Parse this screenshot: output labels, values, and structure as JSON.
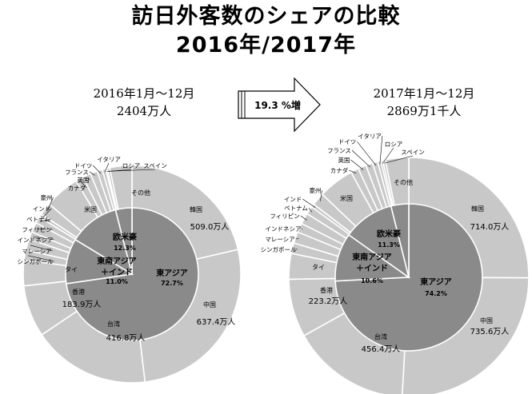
{
  "title_line1": "訪日外客数のシェアの比較",
  "title_line2": "2016年/2017年",
  "growth_label": "19.3 %増",
  "chart_data": [
    {
      "type": "pie",
      "period": "2016年1月～12月",
      "total": "2404万人",
      "outer": [
        {
          "name": "その他",
          "value": 0.5
        },
        {
          "name": "韓国",
          "value": 509.0,
          "value_label": "509.0万人",
          "color": "#c8c8c8"
        },
        {
          "name": "中国",
          "value": 637.4,
          "value_label": "637.4万人",
          "color": "#c8c8c8"
        },
        {
          "name": "台湾",
          "value": 416.8,
          "value_label": "416.8万人",
          "color": "#c8c8c8"
        },
        {
          "name": "香港",
          "value": 183.9,
          "value_label": "183.9万人",
          "color": "#c8c8c8"
        },
        {
          "name": "タイ",
          "value": 90.1
        },
        {
          "name": "シンガポール",
          "value": 36.2
        },
        {
          "name": "マレーシア",
          "value": 39.4
        },
        {
          "name": "インドネシア",
          "value": 27.1
        },
        {
          "name": "フィリピン",
          "value": 34.8
        },
        {
          "name": "ベトナム",
          "value": 23.4
        },
        {
          "name": "インド",
          "value": 12.3
        },
        {
          "name": "豪州",
          "value": 44.5
        },
        {
          "name": "米国",
          "value": 124.3
        },
        {
          "name": "カナダ",
          "value": 27.3
        },
        {
          "name": "英国",
          "value": 29.2
        },
        {
          "name": "フランス",
          "value": 25.3
        },
        {
          "name": "ドイツ",
          "value": 18.3
        },
        {
          "name": "イタリア",
          "value": 11.9
        },
        {
          "name": "ロシア",
          "value": 5.5
        },
        {
          "name": "スペイン",
          "value": 9.2
        },
        {
          "name": "その他",
          "value": 78.5
        }
      ],
      "inner": [
        {
          "name": "東アジア",
          "value": 72.7,
          "value_label": "72.7%"
        },
        {
          "name": "東南アジア＋インド",
          "value": 11.0,
          "value_label": "11.0%"
        },
        {
          "name": "欧米豪",
          "value": 12.3,
          "value_label": "12.3%"
        },
        {
          "name": "その他",
          "value": 4.0
        }
      ]
    },
    {
      "type": "pie",
      "period": "2017年1月～12月",
      "total": "2869万1千人",
      "outer": [
        {
          "name": "その他",
          "value": 0.5
        },
        {
          "name": "韓国",
          "value": 714.0,
          "value_label": "714.0万人",
          "color": "#c8c8c8"
        },
        {
          "name": "中国",
          "value": 735.6,
          "value_label": "735.6万人",
          "color": "#c8c8c8"
        },
        {
          "name": "台湾",
          "value": 456.4,
          "value_label": "456.4万人",
          "color": "#c8c8c8"
        },
        {
          "name": "香港",
          "value": 223.2,
          "value_label": "223.2万人",
          "color": "#c8c8c8"
        },
        {
          "name": "タイ",
          "value": 98.7
        },
        {
          "name": "シンガポール",
          "value": 40.4
        },
        {
          "name": "マレーシア",
          "value": 44.0
        },
        {
          "name": "インドネシア",
          "value": 35.3
        },
        {
          "name": "フィリピン",
          "value": 42.4
        },
        {
          "name": "ベトナム",
          "value": 30.9
        },
        {
          "name": "インド",
          "value": 13.4
        },
        {
          "name": "豪州",
          "value": 49.5
        },
        {
          "name": "米国",
          "value": 137.5
        },
        {
          "name": "カナダ",
          "value": 30.6
        },
        {
          "name": "英国",
          "value": 31.0
        },
        {
          "name": "フランス",
          "value": 26.9
        },
        {
          "name": "ドイツ",
          "value": 19.6
        },
        {
          "name": "イタリア",
          "value": 12.5
        },
        {
          "name": "ロシア",
          "value": 7.8
        },
        {
          "name": "スペイン",
          "value": 10.0
        },
        {
          "name": "その他",
          "value": 89.2
        }
      ],
      "inner": [
        {
          "name": "東アジア",
          "value": 74.2,
          "value_label": "74.2%"
        },
        {
          "name": "東南アジア＋インド",
          "value": 10.6,
          "value_label": "10.6%"
        },
        {
          "name": "欧米豪",
          "value": 11.3,
          "value_label": "11.3%"
        },
        {
          "name": "その他",
          "value": 3.9
        }
      ]
    }
  ],
  "colors": {
    "outer": "#c8c8c8",
    "inner": "#8a8a8a",
    "stroke": "#ffffff"
  }
}
